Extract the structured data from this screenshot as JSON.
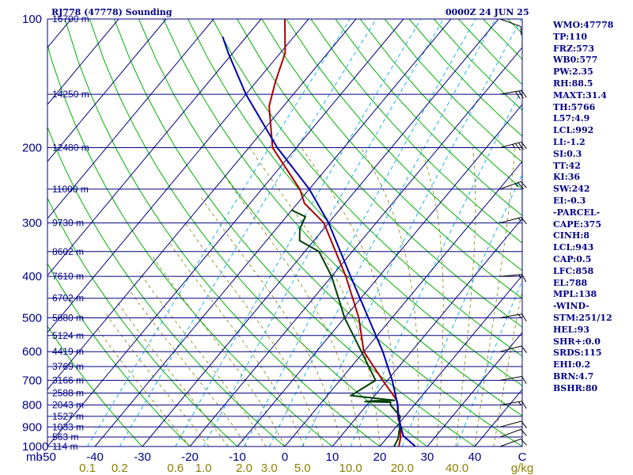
{
  "header": {
    "station": "RJ778 (47778) Sounding",
    "time": "0000Z 24 JUN 25"
  },
  "indices": [
    "WMO:47778",
    "TP:110",
    "FRZ:573",
    "WB0:577",
    "PW:2.35",
    "RH:88.5",
    "MAXT:31.4",
    "TH:5766",
    "L57:4.9",
    "LCL:992",
    "LI:-1.2",
    "SI:0.3",
    "TT:42",
    "KI:36",
    "SW:242",
    "EI:-0.3",
    "-PARCEL-",
    "CAPE:375",
    "CINH:8",
    "LCL:943",
    "CAP:0.5",
    "LFC:858",
    "EL:788",
    "MPL:138",
    "-WIND-",
    "STM:251/12",
    "HEL:93",
    "SHR+:0.0",
    "SRDS:115",
    "EHI:0.2",
    "BRN:4.7",
    "BSHR:80"
  ],
  "colors": {
    "isobar": "#000080",
    "isotherm": "#000080",
    "dry_adiabat": "#00b000",
    "moist_adiabat": "#808000",
    "mixing_ratio": "#00aaee",
    "temperature": "#aa0000",
    "dewpoint": "#004000",
    "parcel": "#0000aa",
    "text": "#000088",
    "tick_text": "#8b8000"
  },
  "chart_data": {
    "type": "line",
    "title": "RJ778 (47778) Sounding",
    "y_axis": {
      "quantity": "pressure",
      "unit": "mb",
      "scale": "log",
      "range": [
        1000,
        100
      ],
      "tick_labels": [
        100,
        200,
        300,
        400,
        500,
        600,
        700,
        800,
        900,
        1000
      ]
    },
    "x_axis": {
      "quantity": "temperature",
      "unit": "C",
      "skewed": true,
      "range_at_1000mb": [
        -50,
        50
      ],
      "tick_labels": [
        -50,
        -40,
        -30,
        -20,
        -10,
        0,
        10,
        20,
        30,
        40
      ],
      "last_label": "C"
    },
    "mixing_ratio_axis": {
      "unit": "g/kg",
      "tick_labels": [
        "0.1",
        "0.2",
        "0.6",
        "1.0",
        "2.0",
        "3.0",
        "5.0",
        "10.0",
        "20.0",
        "40.0"
      ]
    },
    "height_labels": [
      {
        "p": 100,
        "label": "16700 m"
      },
      {
        "p": 150,
        "label": "14250 m"
      },
      {
        "p": 200,
        "label": "12480 m"
      },
      {
        "p": 250,
        "label": "11000 m"
      },
      {
        "p": 300,
        "label": "9730 m"
      },
      {
        "p": 350,
        "label": "8602 m"
      },
      {
        "p": 400,
        "label": "7610 m"
      },
      {
        "p": 450,
        "label": "6702 m"
      },
      {
        "p": 500,
        "label": "5880 m"
      },
      {
        "p": 550,
        "label": "5124 m"
      },
      {
        "p": 600,
        "label": "4419 m"
      },
      {
        "p": 650,
        "label": "3769 m"
      },
      {
        "p": 700,
        "label": "3166 m"
      },
      {
        "p": 750,
        "label": "2588 m"
      },
      {
        "p": 800,
        "label": "2043 m"
      },
      {
        "p": 850,
        "label": "1527 m"
      },
      {
        "p": 900,
        "label": "1033 m"
      },
      {
        "p": 950,
        "label": "563 m"
      },
      {
        "p": 1000,
        "label": "114 m"
      }
    ],
    "series": [
      {
        "key": "temperature",
        "color": "#aa0000",
        "p": [
          1000,
          960,
          900,
          850,
          800,
          780,
          700,
          600,
          500,
          400,
          300,
          270,
          250,
          200,
          160,
          140,
          120,
          100
        ],
        "t": [
          24,
          23,
          21,
          18.5,
          16.5,
          15.5,
          9,
          0,
          -7,
          -17,
          -31,
          -38.5,
          -42,
          -55,
          -63,
          -66,
          -69,
          -75
        ]
      },
      {
        "key": "dewpoint",
        "color": "#004000",
        "p": [
          1000,
          960,
          900,
          870,
          850,
          800,
          788,
          785,
          782,
          780,
          760,
          700,
          600,
          500,
          400,
          350,
          330,
          310,
          290,
          280
        ],
        "td": [
          23,
          22.5,
          20.8,
          19.6,
          19,
          15,
          14.5,
          9,
          11,
          15,
          5,
          7.5,
          -0.5,
          -10,
          -20,
          -27,
          -33,
          -35,
          -36,
          -40
        ]
      },
      {
        "key": "parcel",
        "color": "#0000aa",
        "p": [
          1000,
          943,
          858,
          800,
          700,
          600,
          500,
          400,
          300,
          250,
          200,
          150,
          120,
          110
        ],
        "t": [
          27.5,
          23,
          19,
          16.5,
          11,
          4,
          -5,
          -16,
          -30,
          -40,
          -54,
          -70,
          -81,
          -85
        ]
      }
    ],
    "wind_barbs": [
      {
        "p": 1000,
        "dir": 250,
        "spd": 10
      },
      {
        "p": 950,
        "dir": 250,
        "spd": 10
      },
      {
        "p": 900,
        "dir": 255,
        "spd": 10
      },
      {
        "p": 800,
        "dir": 260,
        "spd": 15
      },
      {
        "p": 700,
        "dir": 260,
        "spd": 10
      },
      {
        "p": 600,
        "dir": 255,
        "spd": 10
      },
      {
        "p": 500,
        "dir": 260,
        "spd": 15
      },
      {
        "p": 400,
        "dir": 265,
        "spd": 15
      },
      {
        "p": 300,
        "dir": 255,
        "spd": 15
      },
      {
        "p": 250,
        "dir": 250,
        "spd": 25
      },
      {
        "p": 200,
        "dir": 255,
        "spd": 35
      },
      {
        "p": 150,
        "dir": 260,
        "spd": 30
      },
      {
        "p": 100,
        "dir": 290,
        "spd": 10
      }
    ]
  }
}
